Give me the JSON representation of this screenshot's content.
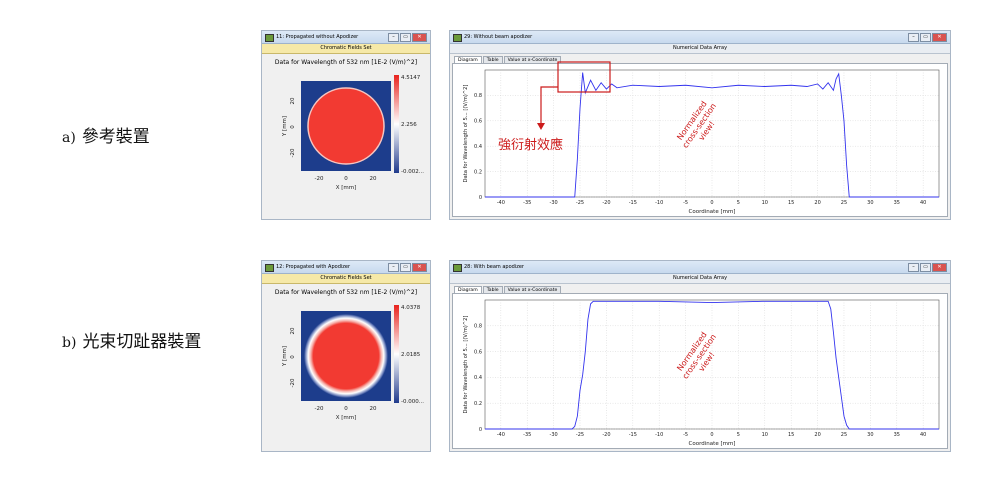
{
  "rows": [
    {
      "letter": "a)",
      "label": "參考裝置",
      "field_window": {
        "title": "11: Propagated without Apodizer",
        "subtitle": "Chromatic Fields Set",
        "caption": "Data for Wavelength of 532 nm  [1E-2 (V/m)^2]",
        "colorbar": [
          "4.5147",
          "2.256",
          "-0.002..."
        ],
        "y_axis": {
          "label": "Y [mm]",
          "ticks": [
            "20",
            "0",
            "-20"
          ]
        },
        "x_axis": {
          "label": "X [mm]",
          "ticks": [
            "-20",
            "0",
            "20"
          ]
        }
      },
      "data_window": {
        "title": "29: Without beam apodizer",
        "subtitle": "Numerical Data Array",
        "tabs": [
          "Diagram",
          "Table",
          "Value at x-Coordinate"
        ],
        "annotation": "強衍射效應",
        "watermark": [
          "Normalized",
          "cross-section",
          "view!"
        ]
      }
    },
    {
      "letter": "b)",
      "label": "光束切趾器裝置",
      "field_window": {
        "title": "12: Propagated with Apodizer",
        "subtitle": "Chromatic Fields Set",
        "caption": "Data for Wavelength of 532 nm  [1E-2 (V/m)^2]",
        "colorbar": [
          "4.0378",
          "2.0185",
          "-0.000..."
        ],
        "y_axis": {
          "label": "Y [mm]",
          "ticks": [
            "20",
            "0",
            "-20"
          ]
        },
        "x_axis": {
          "label": "X [mm]",
          "ticks": [
            "-20",
            "0",
            "20"
          ]
        }
      },
      "data_window": {
        "title": "28: With beam apodizer",
        "subtitle": "Numerical Data Array",
        "tabs": [
          "Diagram",
          "Table",
          "Value at x-Coordinate"
        ],
        "annotation": "",
        "watermark": [
          "Normalized",
          "cross-section",
          "view!"
        ]
      }
    }
  ],
  "window_controls": [
    "–",
    "▭",
    "✕"
  ],
  "colors": {
    "curve": "#3333ee",
    "annotation": "#cc1b1b",
    "field_bg": "#1d3d8c",
    "field_disc": "#f23a32"
  },
  "chart_data": [
    {
      "type": "line",
      "title": "",
      "xlabel": "Coordinate [mm]",
      "ylabel": "Data for Wavelength of 5... [(V/m)^2]",
      "xlim": [
        -43,
        43
      ],
      "ylim": [
        0,
        1
      ],
      "x_ticks": [
        "-40",
        "-35",
        "-30",
        "-25",
        "-20",
        "-15",
        "-10",
        "-5",
        "0",
        "5",
        "10",
        "15",
        "20",
        "25",
        "30",
        "35",
        "40"
      ],
      "y_ticks": [
        "0",
        "0.2",
        "0.4",
        "0.6",
        "0.8"
      ],
      "grid": true,
      "series": [
        {
          "x": [
            -43,
            -26,
            -25.5,
            -25,
            -24.5,
            -24,
            -23,
            -22,
            -21,
            -20,
            -19,
            -18,
            -15,
            -10,
            -5,
            0,
            5,
            10,
            15,
            18,
            20,
            21,
            22,
            23,
            23.5,
            24,
            24.5,
            25,
            25.5,
            26,
            43
          ],
          "y": [
            0,
            0,
            0.3,
            0.7,
            0.98,
            0.82,
            0.92,
            0.84,
            0.9,
            0.85,
            0.89,
            0.86,
            0.88,
            0.87,
            0.88,
            0.86,
            0.88,
            0.87,
            0.88,
            0.87,
            0.89,
            0.85,
            0.9,
            0.84,
            0.93,
            0.97,
            0.8,
            0.6,
            0.25,
            0,
            0
          ]
        }
      ]
    },
    {
      "type": "line",
      "title": "",
      "xlabel": "Coordinate [mm]",
      "ylabel": "Data for Wavelength of 5... [(V/m)^2]",
      "xlim": [
        -43,
        43
      ],
      "ylim": [
        0,
        1
      ],
      "x_ticks": [
        "-40",
        "-35",
        "-30",
        "-25",
        "-20",
        "-15",
        "-10",
        "-5",
        "0",
        "5",
        "10",
        "15",
        "20",
        "25",
        "30",
        "35",
        "40"
      ],
      "y_ticks": [
        "0",
        "0.2",
        "0.4",
        "0.6",
        "0.8"
      ],
      "grid": true,
      "series": [
        {
          "x": [
            -43,
            -26.5,
            -26,
            -25.5,
            -25,
            -24.5,
            -24,
            -23.5,
            -23,
            -22.5,
            -20,
            -10,
            0,
            10,
            20,
            22,
            22.5,
            23,
            23.5,
            24,
            24.5,
            25,
            25.5,
            26,
            43
          ],
          "y": [
            0,
            0,
            0.02,
            0.1,
            0.3,
            0.42,
            0.6,
            0.85,
            0.97,
            0.99,
            0.99,
            0.99,
            0.98,
            0.99,
            0.99,
            0.99,
            0.93,
            0.75,
            0.55,
            0.4,
            0.25,
            0.1,
            0.03,
            0,
            0
          ]
        }
      ]
    }
  ]
}
